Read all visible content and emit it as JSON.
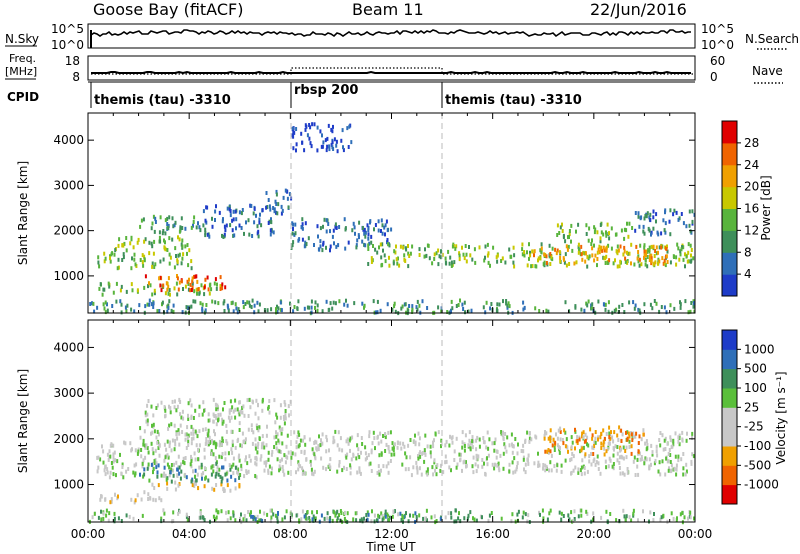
{
  "header": {
    "station": "Goose Bay (fitACF)",
    "beam": "Beam 11",
    "date": "22/Jun/2016"
  },
  "nsky_panel": {
    "label": "N.Sky",
    "right_label": "N.Search",
    "y_ticks_left": [
      "10^5",
      "10^0"
    ],
    "y_ticks_right": [
      "10^5",
      "10^0"
    ]
  },
  "freq_panel": {
    "label_line1": "Freq.",
    "label_line2": "[MHz]",
    "right_label": "Nave",
    "y_ticks_left": [
      "18",
      "8"
    ],
    "y_ticks_right": [
      "60",
      "0"
    ]
  },
  "cpid_panel": {
    "label": "CPID",
    "segments": [
      {
        "label": "themis (tau) -3310",
        "start_h": 0,
        "end_h": 8
      },
      {
        "label": "rbsp 200",
        "start_h": 8,
        "end_h": 14
      },
      {
        "label": "themis (tau) -3310",
        "start_h": 14,
        "end_h": 24
      }
    ]
  },
  "colors": {
    "power": [
      "#1e3cc8",
      "#2f6fb8",
      "#3e8f5a",
      "#58b43c",
      "#c8c800",
      "#f0a000",
      "#f06400",
      "#e00000"
    ],
    "velocity": [
      "#e00000",
      "#f06400",
      "#f0a000",
      "#c8c8c8",
      "#c8c8c8",
      "#5abf3a",
      "#3e8f5a",
      "#2f6fb8",
      "#1e3cc8"
    ]
  },
  "chart_data": [
    {
      "type": "heatmap",
      "name": "Power",
      "ylabel": "Slant Range [km]",
      "colorbar_label": "Power [dB]",
      "colorbar_ticks": [
        "4",
        "8",
        "12",
        "16",
        "20",
        "24",
        "28"
      ],
      "xlim": [
        0,
        24
      ],
      "ylim": [
        180,
        4600
      ],
      "y_ticks": [
        1000,
        2000,
        3000,
        4000
      ],
      "y_tick_labels": [
        "1000",
        "2000",
        "3000",
        "4000"
      ],
      "regions": [
        {
          "t0": 0.3,
          "t1": 4.2,
          "r0": 1200,
          "r1": 1550,
          "level": 3
        },
        {
          "t0": 1.0,
          "t1": 4.0,
          "r0": 1600,
          "r1": 1950,
          "level": 3
        },
        {
          "t0": 0.4,
          "t1": 5.6,
          "r0": 620,
          "r1": 880,
          "level": 3
        },
        {
          "t0": 2.2,
          "t1": 5.4,
          "r0": 720,
          "r1": 1050,
          "level": 6
        },
        {
          "t0": 2.0,
          "t1": 4.5,
          "r0": 1950,
          "r1": 2350,
          "level": 2
        },
        {
          "t0": 4.5,
          "t1": 7.5,
          "r0": 1900,
          "r1": 2600,
          "level": 1
        },
        {
          "t0": 7.0,
          "t1": 8.0,
          "r0": 2400,
          "r1": 2950,
          "level": 1
        },
        {
          "t0": 8.0,
          "t1": 12.0,
          "r0": 1600,
          "r1": 2300,
          "level": 1
        },
        {
          "t0": 11.0,
          "t1": 24.0,
          "r0": 1250,
          "r1": 1750,
          "level": 3
        },
        {
          "t0": 17.5,
          "t1": 23.0,
          "r0": 1300,
          "r1": 1700,
          "level": 5
        },
        {
          "t0": 18.5,
          "t1": 21.5,
          "r0": 1800,
          "r1": 2200,
          "level": 3
        },
        {
          "t0": 21.5,
          "t1": 24.0,
          "r0": 1950,
          "r1": 2500,
          "level": 1
        },
        {
          "t0": 0.0,
          "t1": 24.0,
          "r0": 220,
          "r1": 500,
          "level": 2
        },
        {
          "t0": 8.0,
          "t1": 10.5,
          "r0": 3800,
          "r1": 4400,
          "level": 0
        }
      ]
    },
    {
      "type": "heatmap",
      "name": "Velocity",
      "ylabel": "Slant Range [km]",
      "xlabel": "Time UT",
      "colorbar_label": "Velocity [m s⁻¹]",
      "colorbar_ticks": [
        "-1000",
        "-500",
        "-100",
        "-25",
        "25",
        "100",
        "500",
        "1000"
      ],
      "xlim": [
        0,
        24
      ],
      "ylim": [
        180,
        4600
      ],
      "y_ticks": [
        1000,
        2000,
        3000,
        4000
      ],
      "y_tick_labels": [
        "1000",
        "2000",
        "3000",
        "4000"
      ],
      "x_ticks": [
        0,
        4,
        8,
        12,
        16,
        20,
        24
      ],
      "x_tick_labels": [
        "00:00",
        "04:00",
        "08:00",
        "12:00",
        "16:00",
        "20:00",
        "00:00"
      ],
      "regions": [
        {
          "t0": 0.3,
          "t1": 8.0,
          "r0": 1200,
          "r1": 2000,
          "level": 4
        },
        {
          "t0": 2.0,
          "t1": 8.0,
          "r0": 1900,
          "r1": 2900,
          "level": 4
        },
        {
          "t0": 8.0,
          "t1": 24.0,
          "r0": 1250,
          "r1": 2200,
          "level": 4
        },
        {
          "t0": 0.4,
          "t1": 3.0,
          "r0": 650,
          "r1": 880,
          "level": 5
        },
        {
          "t0": 2.5,
          "t1": 6.0,
          "r0": 900,
          "r1": 1100,
          "level": 5
        },
        {
          "t0": 2.0,
          "t1": 6.0,
          "r0": 1100,
          "r1": 1500,
          "level": 2
        },
        {
          "t0": 18.0,
          "t1": 22.0,
          "r0": 1700,
          "r1": 2300,
          "level": 6
        },
        {
          "t0": 0.0,
          "t1": 24.0,
          "r0": 220,
          "r1": 480,
          "level": 3
        },
        {
          "t0": 6.0,
          "t1": 14.0,
          "r0": 220,
          "r1": 420,
          "level": 2
        }
      ]
    }
  ]
}
